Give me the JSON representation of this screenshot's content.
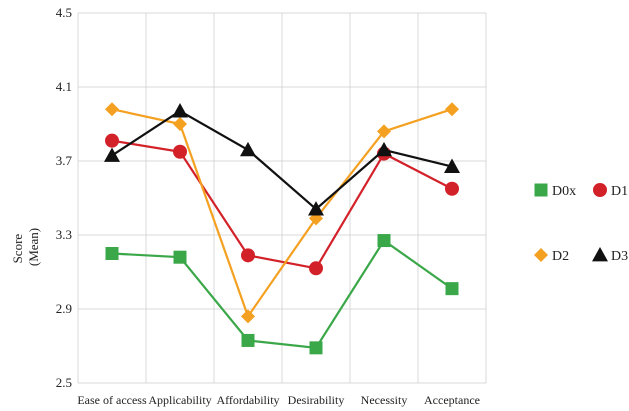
{
  "chart_data": {
    "type": "line",
    "title": "",
    "xlabel": "",
    "ylabel_lines": [
      "Score",
      "(Mean)"
    ],
    "ylim": [
      2.5,
      4.5
    ],
    "yticks": [
      "2.5",
      "2.9",
      "3.3",
      "3.7",
      "4.1",
      "4.5"
    ],
    "grid": true,
    "legend_position": "right",
    "categories": [
      "Ease of access",
      "Applicability",
      "Affordability",
      "Desirability",
      "Necessity",
      "Acceptance"
    ],
    "series": [
      {
        "name": "D0x",
        "color": "#3aa748",
        "marker": "square",
        "values": [
          3.2,
          3.18,
          2.73,
          2.69,
          3.27,
          3.01
        ]
      },
      {
        "name": "D1",
        "color": "#d32129",
        "marker": "circle",
        "values": [
          3.81,
          3.75,
          3.19,
          3.12,
          3.74,
          3.55
        ]
      },
      {
        "name": "D2",
        "color": "#f4a021",
        "marker": "diamond",
        "values": [
          3.98,
          3.9,
          2.86,
          3.39,
          3.86,
          3.98
        ]
      },
      {
        "name": "D3",
        "color": "#111111",
        "marker": "triangle",
        "values": [
          3.73,
          3.97,
          3.76,
          3.44,
          3.76,
          3.67
        ]
      }
    ]
  }
}
